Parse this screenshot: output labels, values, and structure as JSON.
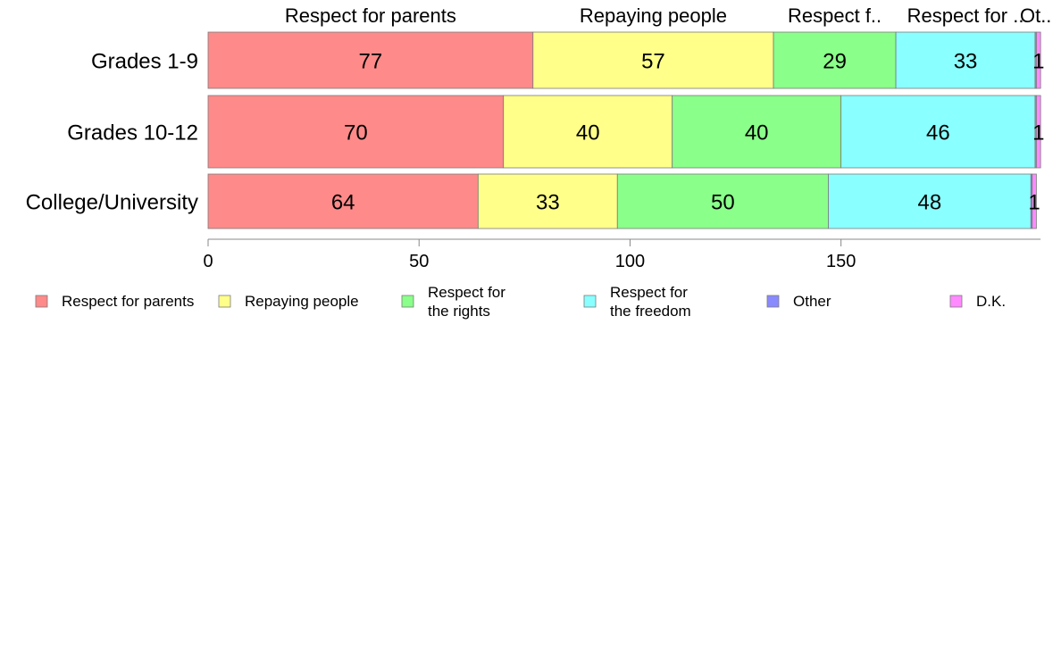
{
  "chart_data": {
    "type": "bar",
    "orientation": "horizontal",
    "stacked": true,
    "title": "",
    "xlabel": "",
    "ylabel": "",
    "xlim": [
      0,
      196
    ],
    "x_ticks": [
      0,
      50,
      100,
      150
    ],
    "grid": false,
    "legend_position": "bottom",
    "categories": [
      "Grades 1-9",
      "Grades 10-12",
      "College/University"
    ],
    "series": [
      {
        "name": "Respect for parents",
        "legend_lines": [
          "Respect for parents"
        ],
        "top_label": "Respect for parents",
        "color": "#FF8A8A",
        "values": [
          77,
          70,
          64
        ],
        "labels": [
          "77",
          "70",
          "64"
        ]
      },
      {
        "name": "Repaying people",
        "legend_lines": [
          "Repaying people"
        ],
        "top_label": "Repaying people",
        "color": "#FFFF8A",
        "values": [
          57,
          40,
          33
        ],
        "labels": [
          "57",
          "40",
          "33"
        ]
      },
      {
        "name": "Respect for the rights",
        "legend_lines": [
          "Respect for",
          "the rights"
        ],
        "top_label": "Respect f..",
        "color": "#8AFF8A",
        "values": [
          29,
          40,
          50
        ],
        "labels": [
          "29",
          "40",
          "50"
        ]
      },
      {
        "name": "Respect for the freedom",
        "legend_lines": [
          "Respect for",
          "the freedom"
        ],
        "top_label": "Respect for ..",
        "color": "#8AFFFF",
        "values": [
          33,
          46,
          48
        ],
        "labels": [
          "33",
          "46",
          "48"
        ]
      },
      {
        "name": "Other",
        "legend_lines": [
          "Other"
        ],
        "top_label": "Ot..",
        "color": "#8A8AFF",
        "values": [
          0.3,
          0.3,
          0.3
        ],
        "labels": [
          "",
          "",
          ""
        ]
      },
      {
        "name": "D.K.",
        "legend_lines": [
          "D.K."
        ],
        "top_label": "",
        "color": "#FF8AFF",
        "values": [
          1,
          1,
          1
        ],
        "labels": [
          "1",
          "1",
          "1"
        ]
      }
    ]
  }
}
